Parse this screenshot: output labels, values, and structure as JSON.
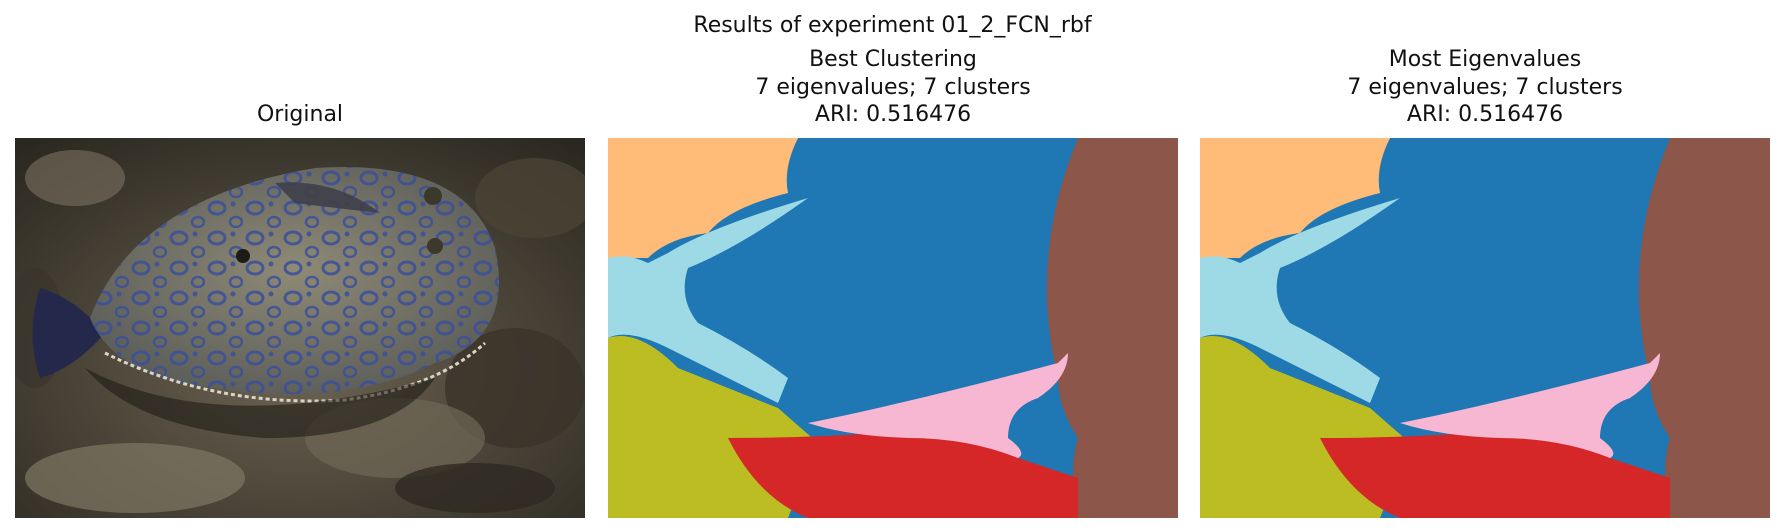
{
  "figure": {
    "suptitle": "Results of experiment 01_2_FCN_rbf"
  },
  "panels": [
    {
      "id": "original",
      "title_lines": [
        "Original"
      ],
      "image": "photo of a peacock flounder on the sea floor"
    },
    {
      "id": "best-clustering",
      "title_lines": [
        "Best Clustering",
        "7 eigenvalues; 7 clusters",
        "ARI: 0.516476"
      ]
    },
    {
      "id": "most-eigenvalues",
      "title_lines": [
        "Most Eigenvalues",
        "7 eigenvalues; 7 clusters",
        "ARI: 0.516476"
      ]
    }
  ],
  "cluster_colors": {
    "orange": "#ffbb78",
    "light_blue": "#9edae5",
    "blue": "#1f77b4",
    "brown": "#8c564b",
    "olive": "#bcbd22",
    "red": "#d62728",
    "pink": "#f7b6d2"
  }
}
